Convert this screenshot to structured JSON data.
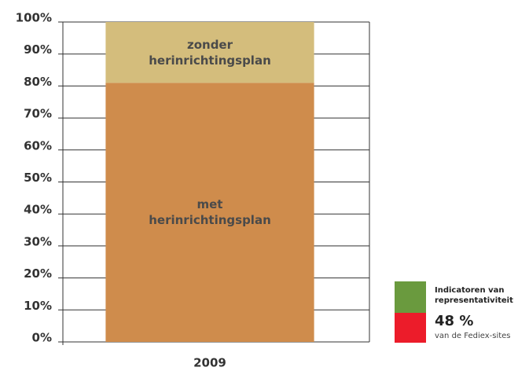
{
  "chart_data": {
    "type": "stacked_bar",
    "categories": [
      "2009"
    ],
    "series": [
      {
        "name": "met herinrichtingsplan",
        "color": "#cf8c4c",
        "values": [
          81
        ]
      },
      {
        "name": "zonder herinrichtingsplan",
        "color": "#d4bd7c",
        "values": [
          19
        ]
      }
    ],
    "ylim": [
      0,
      100
    ],
    "yticks": [
      {
        "value": 0,
        "label": "0%"
      },
      {
        "value": 10,
        "label": "10%"
      },
      {
        "value": 20,
        "label": "20%"
      },
      {
        "value": 30,
        "label": "30%"
      },
      {
        "value": 40,
        "label": "40%"
      },
      {
        "value": 50,
        "label": "50%"
      },
      {
        "value": 60,
        "label": "60%"
      },
      {
        "value": 70,
        "label": "70%"
      },
      {
        "value": 80,
        "label": "80%"
      },
      {
        "value": 90,
        "label": "90%"
      },
      {
        "value": 100,
        "label": "100%"
      }
    ],
    "grid": true
  },
  "indicator": {
    "title": "Indicatoren van representativiteit",
    "value": "48 %",
    "note": "van de Fediex-sites",
    "colors": [
      "#6a9a3e",
      "#ec1c2a"
    ]
  }
}
